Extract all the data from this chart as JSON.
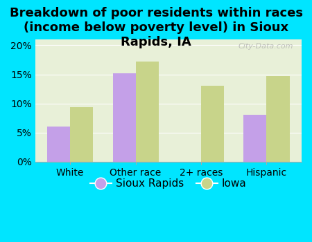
{
  "title": "Breakdown of poor residents within races\n(income below poverty level) in Sioux\nRapids, IA",
  "categories": [
    "White",
    "Other race",
    "2+ races",
    "Hispanic"
  ],
  "sioux_rapids": [
    6.0,
    15.2,
    0.0,
    8.1
  ],
  "iowa": [
    9.3,
    17.2,
    13.0,
    14.7
  ],
  "sioux_rapids_color": "#c4a0e8",
  "iowa_color": "#c8d48a",
  "background_outer": "#00e5ff",
  "background_inner": "#e8f0d8",
  "bar_width": 0.35,
  "ylim": [
    0,
    21
  ],
  "yticks": [
    0,
    5,
    10,
    15,
    20
  ],
  "ytick_labels": [
    "0%",
    "5%",
    "10%",
    "15%",
    "20%"
  ],
  "legend_labels": [
    "Sioux Rapids",
    "Iowa"
  ],
  "watermark": "City-Data.com",
  "title_fontsize": 13,
  "tick_fontsize": 10,
  "legend_fontsize": 11
}
